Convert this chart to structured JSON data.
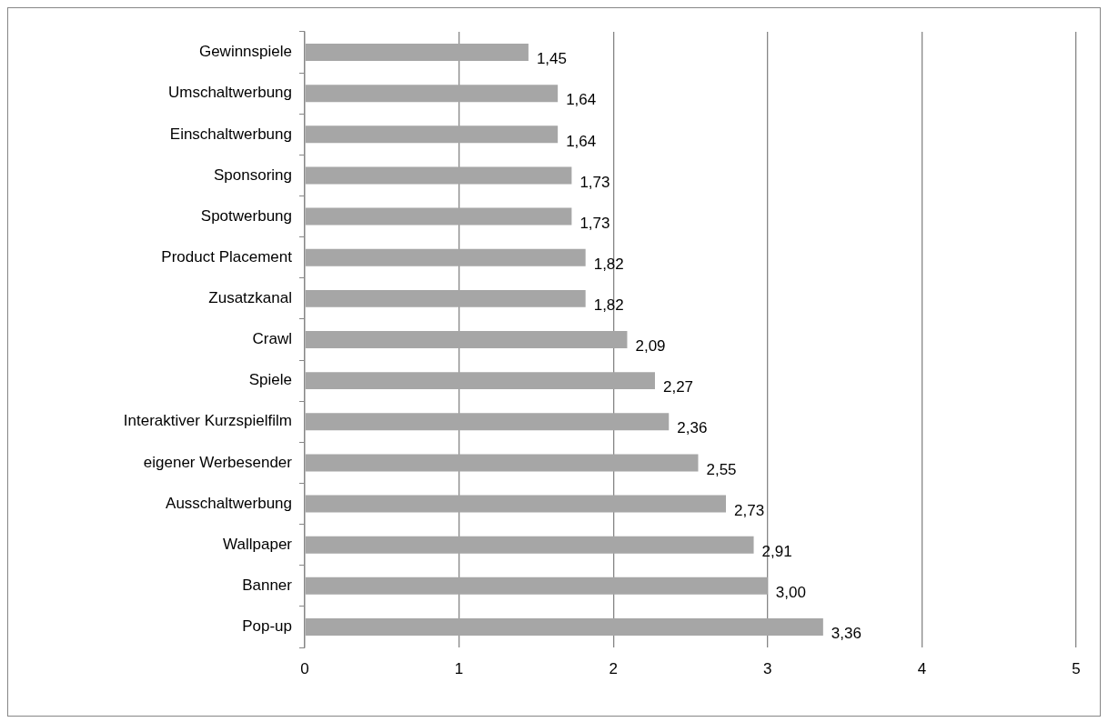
{
  "chart_data": {
    "type": "bar",
    "orientation": "horizontal",
    "categories": [
      "Gewinnspiele",
      "Umschaltwerbung",
      "Einschaltwerbung",
      "Sponsoring",
      "Spotwerbung",
      "Product Placement",
      "Zusatzkanal",
      "Crawl",
      "Spiele",
      "Interaktiver Kurzspielfilm",
      "eigener Werbesender",
      "Ausschaltwerbung",
      "Wallpaper",
      "Banner",
      "Pop-up"
    ],
    "values": [
      1.45,
      1.64,
      1.64,
      1.73,
      1.73,
      1.82,
      1.82,
      2.09,
      2.27,
      2.36,
      2.55,
      2.73,
      2.91,
      3.0,
      3.36
    ],
    "value_labels": [
      "1,45",
      "1,64",
      "1,64",
      "1,73",
      "1,73",
      "1,82",
      "1,82",
      "2,09",
      "2,27",
      "2,36",
      "2,55",
      "2,73",
      "2,91",
      "3,00",
      "3,36"
    ],
    "color": "#a6a6a6",
    "xlim": [
      0,
      5
    ],
    "xticks": [
      0,
      1,
      2,
      3,
      4,
      5
    ],
    "grid": "x"
  }
}
